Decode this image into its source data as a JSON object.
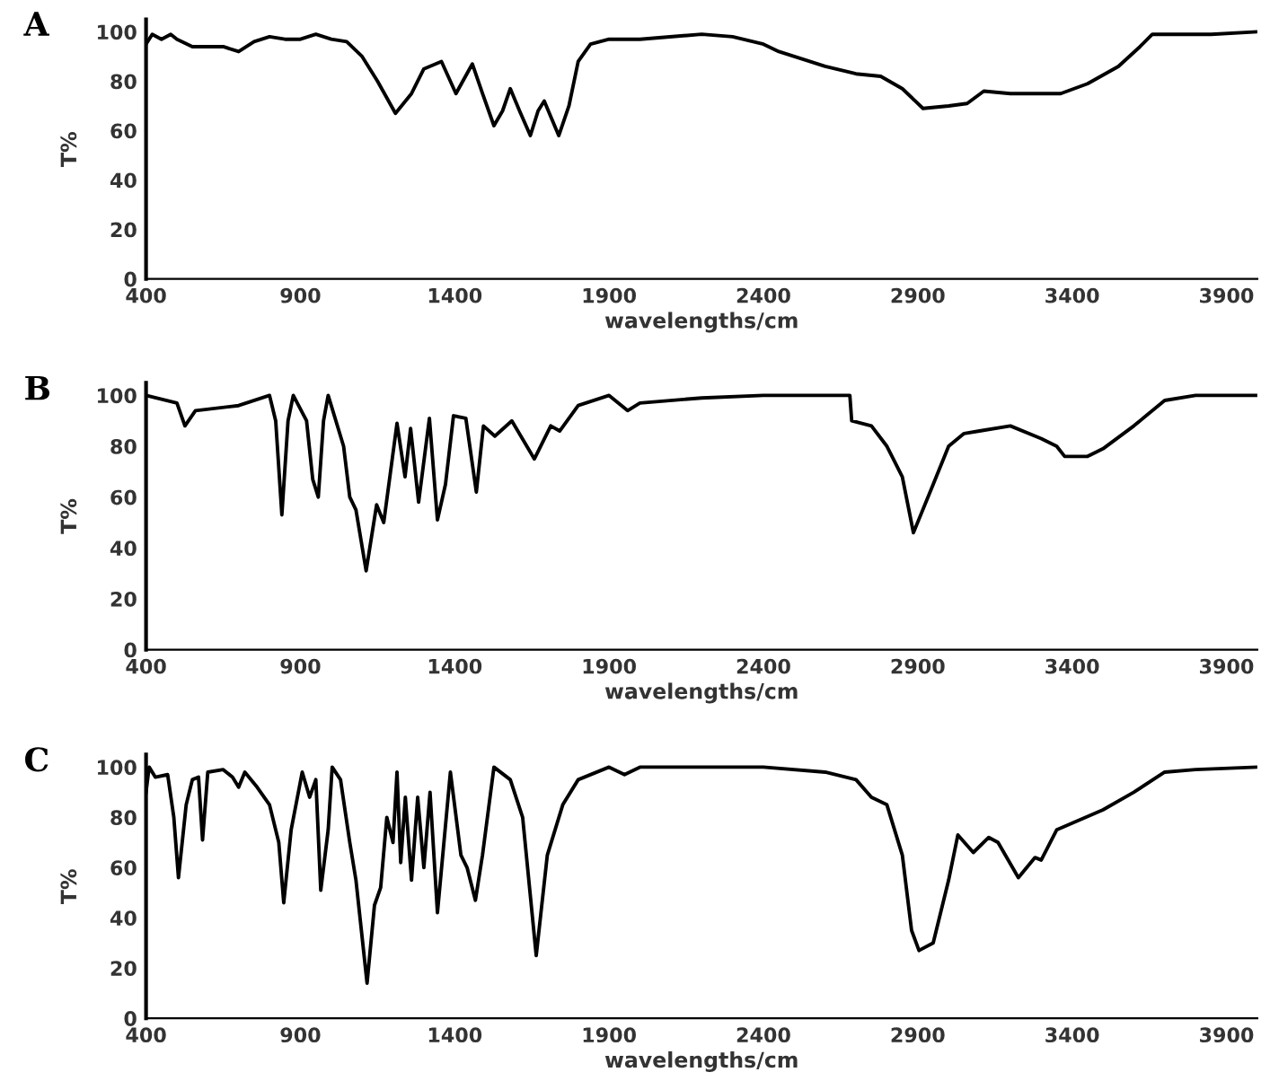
{
  "chart_data": [
    {
      "type": "line",
      "title": "A",
      "xlabel": "wavelengths/cm",
      "ylabel": "T%",
      "xlim": [
        400,
        4000
      ],
      "ylim": [
        0,
        105
      ],
      "xticks": [
        400,
        900,
        1400,
        1900,
        2400,
        2900,
        3400,
        3900
      ],
      "yticks": [
        0,
        20,
        40,
        60,
        80,
        100
      ],
      "grid": false,
      "legend": false,
      "marker": "none",
      "line_style": "solid",
      "series": [
        {
          "color": "#000000",
          "x": [
            400,
            420,
            450,
            480,
            500,
            550,
            600,
            650,
            700,
            750,
            800,
            850,
            900,
            950,
            1000,
            1050,
            1100,
            1150,
            1208,
            1260,
            1300,
            1357,
            1404,
            1457,
            1490,
            1527,
            1555,
            1580,
            1610,
            1645,
            1670,
            1690,
            1710,
            1737,
            1770,
            1800,
            1840,
            1900,
            2000,
            2200,
            2300,
            2400,
            2450,
            2500,
            2600,
            2700,
            2780,
            2850,
            2917,
            3000,
            3060,
            3114,
            3200,
            3363,
            3450,
            3550,
            3620,
            3660,
            3750,
            3850,
            4000
          ],
          "values": [
            95,
            99,
            97,
            99,
            97,
            94,
            94,
            94,
            92,
            96,
            98,
            97,
            97,
            99,
            97,
            96,
            90,
            80,
            67,
            75,
            85,
            88,
            75,
            87,
            75,
            62,
            68,
            77,
            68,
            58,
            68,
            72,
            66,
            58,
            70,
            88,
            95,
            97,
            97,
            99,
            98,
            95,
            92,
            90,
            86,
            83,
            82,
            77,
            69,
            70,
            71,
            76,
            75,
            75,
            79,
            86,
            94,
            99,
            99,
            99,
            100
          ]
        }
      ]
    },
    {
      "type": "line",
      "title": "B",
      "xlabel": "wavelengths/cm",
      "ylabel": "T%",
      "xlim": [
        400,
        4000
      ],
      "ylim": [
        0,
        105
      ],
      "xticks": [
        400,
        900,
        1400,
        1900,
        2400,
        2900,
        3400,
        3900
      ],
      "yticks": [
        0,
        20,
        40,
        60,
        80,
        100
      ],
      "grid": false,
      "legend": false,
      "marker": "none",
      "line_style": "solid",
      "series": [
        {
          "color": "#000000",
          "x": [
            400,
            500,
            526,
            560,
            700,
            800,
            820,
            840,
            860,
            877,
            920,
            940,
            958,
            975,
            990,
            1040,
            1060,
            1080,
            1113,
            1147,
            1170,
            1213,
            1239,
            1257,
            1283,
            1318,
            1344,
            1370,
            1396,
            1436,
            1470,
            1493,
            1530,
            1585,
            1658,
            1711,
            1740,
            1800,
            1900,
            1960,
            2000,
            2200,
            2400,
            2600,
            2680,
            2686,
            2750,
            2800,
            2850,
            2886,
            2950,
            3000,
            3050,
            3100,
            3200,
            3300,
            3350,
            3376,
            3450,
            3500,
            3600,
            3700,
            3800,
            4000
          ],
          "values": [
            100,
            97,
            88,
            94,
            96,
            100,
            90,
            53,
            90,
            100,
            90,
            67,
            60,
            90,
            100,
            80,
            60,
            55,
            31,
            57,
            50,
            89,
            68,
            87,
            58,
            91,
            51,
            65,
            92,
            91,
            62,
            88,
            84,
            90,
            75,
            88,
            86,
            96,
            100,
            94,
            97,
            99,
            100,
            100,
            100,
            90,
            88,
            80,
            68,
            46,
            65,
            80,
            85,
            86,
            88,
            83,
            80,
            76,
            76,
            79,
            88,
            98,
            100,
            100
          ]
        }
      ]
    },
    {
      "type": "line",
      "title": "C",
      "xlabel": "wavelengths/cm",
      "ylabel": "T%",
      "xlim": [
        400,
        4000
      ],
      "ylim": [
        0,
        105
      ],
      "xticks": [
        400,
        900,
        1400,
        1900,
        2400,
        2900,
        3400,
        3900
      ],
      "yticks": [
        0,
        20,
        40,
        60,
        80,
        100
      ],
      "grid": false,
      "legend": false,
      "marker": "none",
      "line_style": "solid",
      "series": [
        {
          "color": "#000000",
          "x": [
            400,
            410,
            430,
            470,
            490,
            505,
            530,
            550,
            570,
            583,
            600,
            650,
            680,
            700,
            720,
            760,
            800,
            830,
            846,
            870,
            906,
            930,
            950,
            966,
            990,
            1003,
            1030,
            1060,
            1080,
            1116,
            1140,
            1160,
            1180,
            1200,
            1213,
            1225,
            1240,
            1260,
            1280,
            1300,
            1320,
            1344,
            1386,
            1420,
            1440,
            1467,
            1490,
            1527,
            1580,
            1620,
            1664,
            1700,
            1750,
            1800,
            1900,
            1950,
            2000,
            2200,
            2400,
            2600,
            2700,
            2750,
            2800,
            2850,
            2880,
            2904,
            2950,
            3000,
            3030,
            3080,
            3130,
            3160,
            3226,
            3280,
            3300,
            3350,
            3500,
            3600,
            3700,
            3800,
            4000
          ],
          "values": [
            90,
            100,
            96,
            97,
            80,
            56,
            85,
            95,
            96,
            71,
            98,
            99,
            96,
            92,
            98,
            92,
            85,
            70,
            46,
            75,
            98,
            88,
            95,
            51,
            75,
            100,
            95,
            70,
            55,
            14,
            45,
            52,
            80,
            70,
            98,
            62,
            88,
            55,
            88,
            60,
            90,
            42,
            98,
            65,
            60,
            47,
            65,
            100,
            95,
            80,
            25,
            65,
            85,
            95,
            100,
            97,
            100,
            100,
            100,
            98,
            95,
            88,
            85,
            65,
            35,
            27,
            30,
            55,
            73,
            66,
            72,
            70,
            56,
            64,
            63,
            75,
            83,
            90,
            98,
            99,
            100
          ]
        }
      ]
    }
  ]
}
